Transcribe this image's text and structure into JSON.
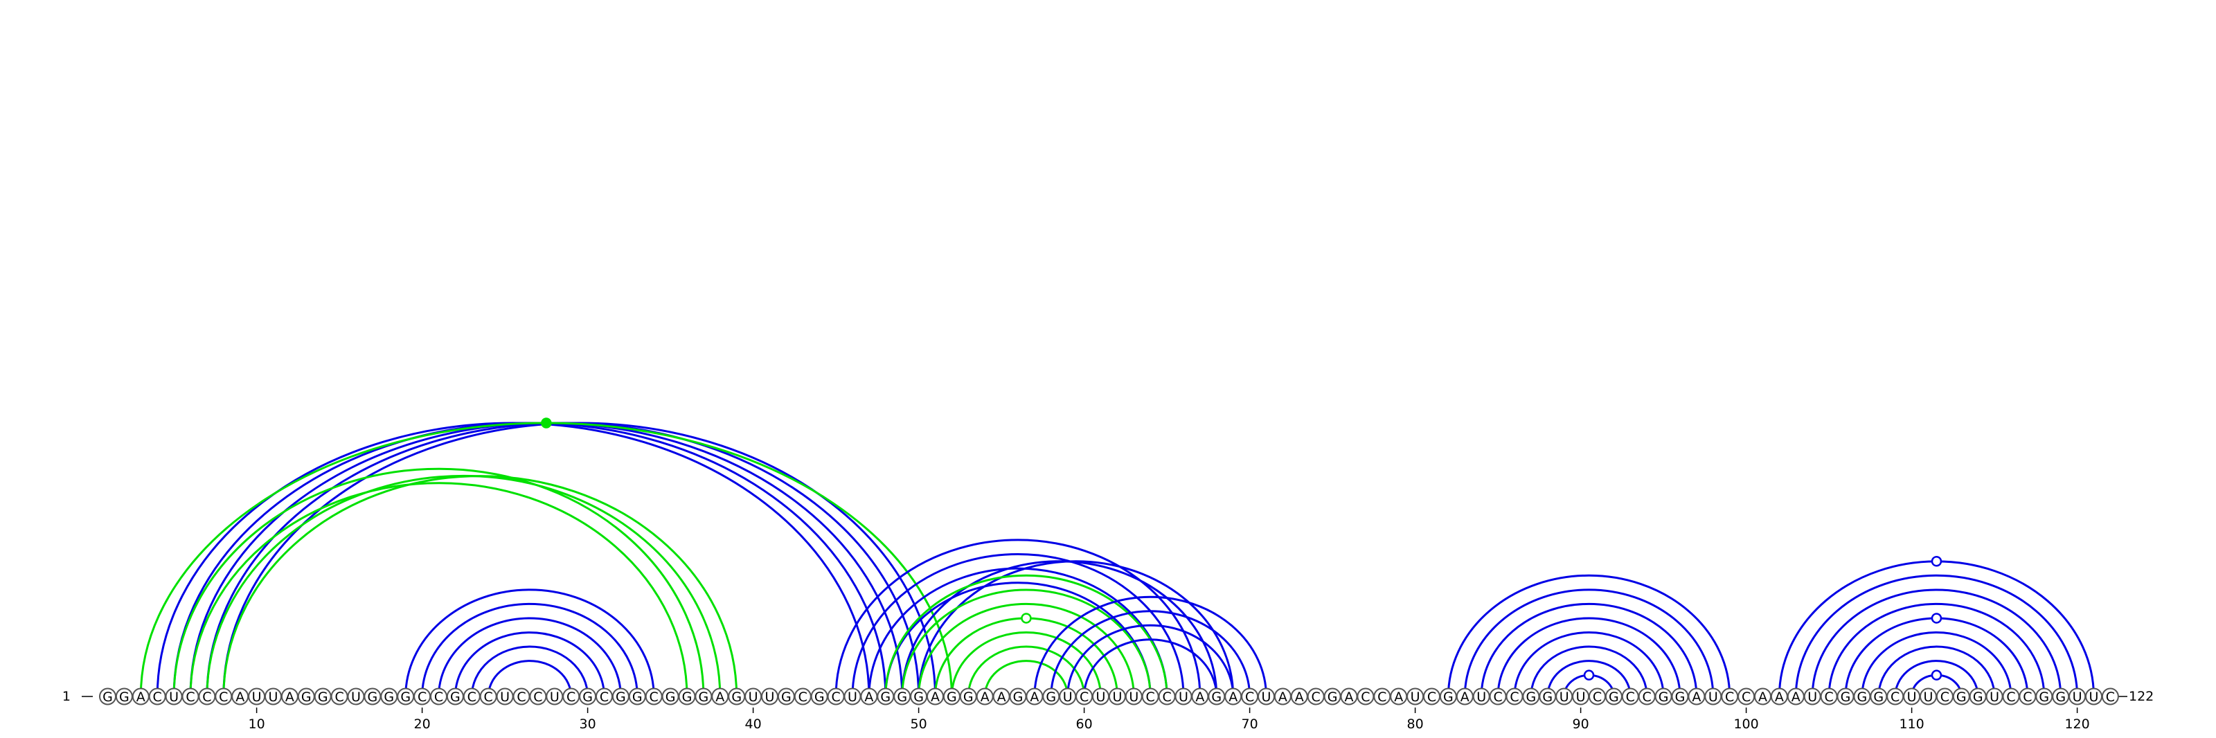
{
  "sequence": "GGACUCCCAUUAGGCUGGGCCGCCUCCUCGCGGCGGGAGUUGCGCUAGGGAGGAAGAGUCUUUCCUAGACUAACGACCAUCGAUCCGGUUCGCCGGAUCCAAAUCGGGCUUCGGUCCGGUUC",
  "start_label": "1",
  "end_label": "122",
  "ticks": [
    "10",
    "20",
    "30",
    "40",
    "50",
    "60",
    "70",
    "80",
    "90",
    "100",
    "110",
    "120"
  ],
  "colors": {
    "blue": "#0000e6",
    "green": "#00e000"
  },
  "arcs": [
    {
      "i": 7,
      "j": 50,
      "color": "blue"
    },
    {
      "i": 5,
      "j": 48,
      "color": "blue"
    },
    {
      "i": 6,
      "j": 49,
      "color": "blue"
    },
    {
      "i": 8,
      "j": 51,
      "color": "blue"
    },
    {
      "i": 4,
      "j": 47,
      "color": "blue"
    },
    {
      "i": 3,
      "j": 52,
      "color": "green"
    },
    {
      "i": 5,
      "j": 37,
      "color": "green"
    },
    {
      "i": 6,
      "j": 36,
      "color": "green"
    },
    {
      "i": 7,
      "j": 38,
      "color": "green"
    },
    {
      "i": 8,
      "j": 39,
      "color": "green"
    },
    {
      "i": 19,
      "j": 34,
      "color": "blue"
    },
    {
      "i": 20,
      "j": 33,
      "color": "blue"
    },
    {
      "i": 21,
      "j": 32,
      "color": "blue"
    },
    {
      "i": 22,
      "j": 31,
      "color": "blue"
    },
    {
      "i": 23,
      "j": 30,
      "color": "blue"
    },
    {
      "i": 24,
      "j": 29,
      "color": "blue"
    },
    {
      "i": 45,
      "j": 67,
      "color": "blue"
    },
    {
      "i": 46,
      "j": 66,
      "color": "blue"
    },
    {
      "i": 47,
      "j": 65,
      "color": "blue"
    },
    {
      "i": 48,
      "j": 64,
      "color": "blue"
    },
    {
      "i": 49,
      "j": 68,
      "color": "blue"
    },
    {
      "i": 50,
      "j": 69,
      "color": "blue"
    },
    {
      "i": 48,
      "j": 65,
      "color": "green"
    },
    {
      "i": 49,
      "j": 64,
      "color": "green"
    },
    {
      "i": 50,
      "j": 63,
      "color": "green"
    },
    {
      "i": 51,
      "j": 62,
      "color": "green"
    },
    {
      "i": 52,
      "j": 61,
      "color": "green"
    },
    {
      "i": 53,
      "j": 60,
      "color": "green"
    },
    {
      "i": 54,
      "j": 59,
      "color": "green"
    },
    {
      "i": 57,
      "j": 71,
      "color": "blue"
    },
    {
      "i": 58,
      "j": 70,
      "color": "blue"
    },
    {
      "i": 59,
      "j": 69,
      "color": "blue"
    },
    {
      "i": 60,
      "j": 68,
      "color": "blue"
    },
    {
      "i": 82,
      "j": 99,
      "color": "blue"
    },
    {
      "i": 83,
      "j": 98,
      "color": "blue"
    },
    {
      "i": 84,
      "j": 97,
      "color": "blue"
    },
    {
      "i": 85,
      "j": 96,
      "color": "blue"
    },
    {
      "i": 86,
      "j": 95,
      "color": "blue"
    },
    {
      "i": 87,
      "j": 94,
      "color": "blue"
    },
    {
      "i": 88,
      "j": 93,
      "color": "blue"
    },
    {
      "i": 89,
      "j": 92,
      "color": "blue"
    },
    {
      "i": 102,
      "j": 121,
      "color": "blue"
    },
    {
      "i": 103,
      "j": 120,
      "color": "blue"
    },
    {
      "i": 104,
      "j": 119,
      "color": "blue"
    },
    {
      "i": 105,
      "j": 118,
      "color": "blue"
    },
    {
      "i": 106,
      "j": 117,
      "color": "blue"
    },
    {
      "i": 107,
      "j": 116,
      "color": "blue"
    },
    {
      "i": 108,
      "j": 115,
      "color": "blue"
    },
    {
      "i": 109,
      "j": 114,
      "color": "blue"
    },
    {
      "i": 110,
      "j": 113,
      "color": "blue"
    }
  ],
  "markers": [
    {
      "i": 3,
      "j": 52,
      "color": "green",
      "filled": true
    },
    {
      "i": 51,
      "j": 62,
      "color": "green",
      "filled": false
    },
    {
      "i": 89,
      "j": 92,
      "color": "blue",
      "filled": false
    },
    {
      "i": 102,
      "j": 121,
      "color": "blue",
      "filled": false
    },
    {
      "i": 106,
      "j": 117,
      "color": "blue",
      "filled": false
    },
    {
      "i": 110,
      "j": 113,
      "color": "blue",
      "filled": false
    }
  ]
}
